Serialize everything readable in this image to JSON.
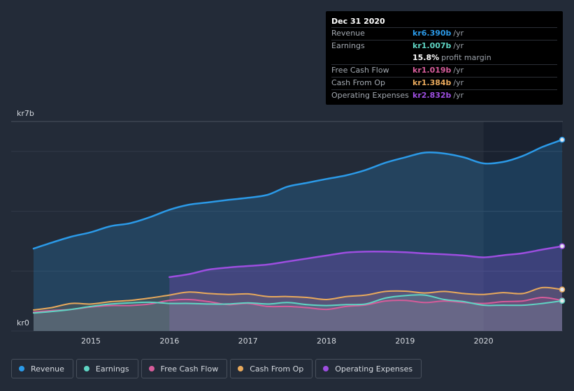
{
  "chart_data": {
    "type": "area",
    "title": "",
    "xlabel": "",
    "ylabel": "",
    "y_axis_labels": {
      "top": "kr7b",
      "bottom": "kr0"
    },
    "ylim": [
      0,
      7
    ],
    "xlim": [
      2014.27,
      2021.0
    ],
    "x_ticks": [
      2015,
      2016,
      2017,
      2018,
      2019,
      2020
    ],
    "x_tick_labels": [
      "2015",
      "2016",
      "2017",
      "2018",
      "2019",
      "2020"
    ],
    "forecast_shade_start": 2020.0,
    "series": [
      {
        "name": "Revenue",
        "color": "#2b9ae8",
        "x": [
          2014.27,
          2014.5,
          2014.75,
          2015.0,
          2015.25,
          2015.5,
          2015.75,
          2016.0,
          2016.25,
          2016.5,
          2016.75,
          2017.0,
          2017.25,
          2017.5,
          2017.75,
          2018.0,
          2018.25,
          2018.5,
          2018.75,
          2019.0,
          2019.25,
          2019.5,
          2019.75,
          2020.0,
          2020.25,
          2020.5,
          2020.75,
          2021.0
        ],
        "values": [
          2.75,
          2.95,
          3.15,
          3.3,
          3.5,
          3.6,
          3.8,
          4.05,
          4.22,
          4.3,
          4.38,
          4.45,
          4.55,
          4.82,
          4.95,
          5.08,
          5.2,
          5.38,
          5.62,
          5.8,
          5.96,
          5.93,
          5.8,
          5.6,
          5.65,
          5.85,
          6.15,
          6.39
        ]
      },
      {
        "name": "Operating Expenses",
        "color": "#9d4ee0",
        "x": [
          2016.0,
          2016.25,
          2016.5,
          2016.75,
          2017.0,
          2017.25,
          2017.5,
          2017.75,
          2018.0,
          2018.25,
          2018.5,
          2018.75,
          2019.0,
          2019.25,
          2019.5,
          2019.75,
          2020.0,
          2020.25,
          2020.5,
          2020.75,
          2021.0
        ],
        "values": [
          1.8,
          1.9,
          2.05,
          2.12,
          2.17,
          2.22,
          2.32,
          2.42,
          2.52,
          2.62,
          2.65,
          2.65,
          2.63,
          2.59,
          2.56,
          2.52,
          2.46,
          2.53,
          2.6,
          2.72,
          2.832
        ]
      },
      {
        "name": "Cash From Op",
        "color": "#e8a95c",
        "x": [
          2014.27,
          2014.5,
          2014.75,
          2015.0,
          2015.25,
          2015.5,
          2015.75,
          2016.0,
          2016.25,
          2016.5,
          2016.75,
          2017.0,
          2017.25,
          2017.5,
          2017.75,
          2018.0,
          2018.25,
          2018.5,
          2018.75,
          2019.0,
          2019.25,
          2019.5,
          2019.75,
          2020.0,
          2020.25,
          2020.5,
          2020.75,
          2021.0
        ],
        "values": [
          0.7,
          0.78,
          0.92,
          0.9,
          0.98,
          1.02,
          1.1,
          1.2,
          1.3,
          1.25,
          1.22,
          1.24,
          1.15,
          1.15,
          1.12,
          1.05,
          1.15,
          1.2,
          1.32,
          1.33,
          1.27,
          1.32,
          1.25,
          1.22,
          1.28,
          1.25,
          1.45,
          1.384
        ]
      },
      {
        "name": "Free Cash Flow",
        "color": "#d65c9a",
        "x": [
          2014.27,
          2014.5,
          2014.75,
          2015.0,
          2015.25,
          2015.5,
          2015.75,
          2016.0,
          2016.25,
          2016.5,
          2016.75,
          2017.0,
          2017.25,
          2017.5,
          2017.75,
          2018.0,
          2018.25,
          2018.5,
          2018.75,
          2019.0,
          2019.25,
          2019.5,
          2019.75,
          2020.0,
          2020.25,
          2020.5,
          2020.75,
          2021.0
        ],
        "values": [
          0.63,
          0.68,
          0.72,
          0.8,
          0.85,
          0.85,
          0.9,
          1.02,
          1.05,
          0.98,
          0.88,
          0.92,
          0.82,
          0.82,
          0.78,
          0.72,
          0.82,
          0.87,
          1.0,
          1.02,
          0.95,
          1.0,
          0.95,
          0.92,
          0.98,
          1.0,
          1.12,
          1.019
        ]
      },
      {
        "name": "Earnings",
        "color": "#5fd5c4",
        "x": [
          2014.27,
          2014.5,
          2014.75,
          2015.0,
          2015.25,
          2015.5,
          2015.75,
          2016.0,
          2016.25,
          2016.5,
          2016.75,
          2017.0,
          2017.25,
          2017.5,
          2017.75,
          2018.0,
          2018.25,
          2018.5,
          2018.75,
          2019.0,
          2019.25,
          2019.5,
          2019.75,
          2020.0,
          2020.25,
          2020.5,
          2020.75,
          2021.0
        ],
        "values": [
          0.6,
          0.65,
          0.72,
          0.82,
          0.9,
          0.94,
          0.96,
          0.92,
          0.92,
          0.9,
          0.9,
          0.94,
          0.9,
          0.95,
          0.88,
          0.85,
          0.88,
          0.9,
          1.1,
          1.18,
          1.2,
          1.05,
          0.98,
          0.86,
          0.86,
          0.86,
          0.92,
          1.007
        ]
      }
    ]
  },
  "tooltip": {
    "date": "Dec 31 2020",
    "rows": [
      {
        "label": "Revenue",
        "value": "kr6.390b",
        "unit": "/yr",
        "color": "#2b9ae8"
      },
      {
        "label": "Earnings",
        "value": "kr1.007b",
        "unit": "/yr",
        "color": "#5fd5c4"
      },
      {
        "label": "",
        "value": "15.8%",
        "unit": "profit margin",
        "color": "#ffffff"
      },
      {
        "label": "Free Cash Flow",
        "value": "kr1.019b",
        "unit": "/yr",
        "color": "#d65c9a"
      },
      {
        "label": "Cash From Op",
        "value": "kr1.384b",
        "unit": "/yr",
        "color": "#e8a95c"
      },
      {
        "label": "Operating Expenses",
        "value": "kr2.832b",
        "unit": "/yr",
        "color": "#9d4ee0"
      }
    ]
  },
  "legend": [
    {
      "label": "Revenue",
      "color": "#2b9ae8"
    },
    {
      "label": "Earnings",
      "color": "#5fd5c4"
    },
    {
      "label": "Free Cash Flow",
      "color": "#d65c9a"
    },
    {
      "label": "Cash From Op",
      "color": "#e8a95c"
    },
    {
      "label": "Operating Expenses",
      "color": "#9d4ee0"
    }
  ]
}
